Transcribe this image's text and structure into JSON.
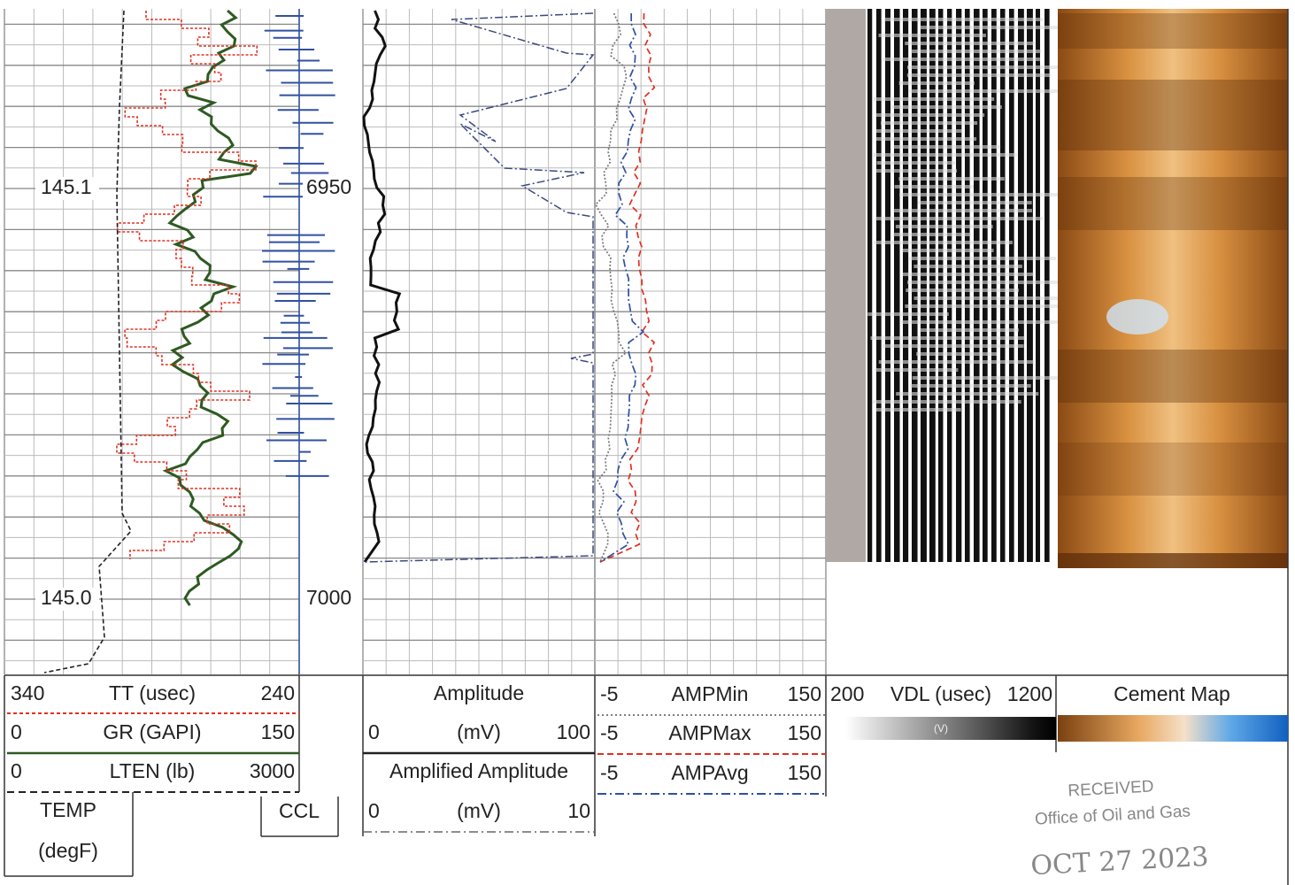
{
  "depth_labels": [
    "6950",
    "7000"
  ],
  "temp_labels": [
    "145.1",
    "145.0"
  ],
  "track1": {
    "rows": [
      {
        "left": "340",
        "name": "TT (usec)",
        "right": "240"
      },
      {
        "left": "0",
        "name": "GR (GAPI)",
        "right": "150"
      },
      {
        "left": "0",
        "name": "LTEN (lb)",
        "right": "3000"
      }
    ],
    "temp": [
      "TEMP",
      "(degF)"
    ],
    "ccl": "CCL"
  },
  "track2": {
    "rows": [
      {
        "name": "Amplitude",
        "left": "0",
        "unit": "(mV)",
        "right": "100"
      },
      {
        "name": "Amplified Amplitude",
        "left": "0",
        "unit": "(mV)",
        "right": "10"
      }
    ]
  },
  "track3": {
    "rows": [
      {
        "left": "-5",
        "name": "AMPMin",
        "right": "150"
      },
      {
        "left": "-5",
        "name": "AMPMax",
        "right": "150"
      },
      {
        "left": "-5",
        "name": "AMPAvg",
        "right": "150"
      }
    ]
  },
  "vdl": {
    "left": "200",
    "name": "VDL (usec)",
    "right": "1200",
    "scale": "(V)"
  },
  "cement_map": {
    "name": "Cement Map"
  },
  "stamp": {
    "line1": "RECEIVED",
    "line2": "Office of Oil and Gas",
    "date": "OCT 27 2023"
  }
}
